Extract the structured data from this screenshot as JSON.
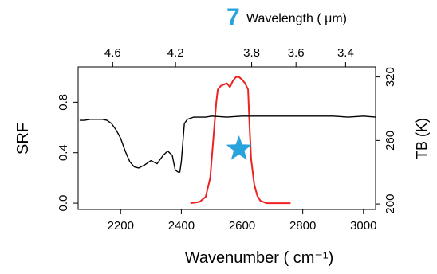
{
  "panel_label": "7",
  "colors": {
    "srf": "#ee2222",
    "tb": "#000000",
    "star": "#29a3dc",
    "panel_label": "#29a3dc"
  },
  "chart_data": {
    "type": "line",
    "xlabel": "Wavenumber ( cm⁻¹)",
    "top_axis_label": "Wavelength ( μm)",
    "ylabel_left": "SRF",
    "ylabel_right": "TB (K)",
    "xlim": [
      2060,
      3040
    ],
    "ylim_left": [
      -0.05,
      1.08
    ],
    "ylim_right": [
      194.8,
      329.5
    ],
    "x_ticks": [
      2200,
      2400,
      2600,
      2800,
      3000
    ],
    "top_ticks": [
      {
        "label": "4.6",
        "value": 4.6
      },
      {
        "label": "4.2",
        "value": 4.2
      },
      {
        "label": "3.8",
        "value": 3.8
      },
      {
        "label": "3.6",
        "value": 3.6
      },
      {
        "label": "3.4",
        "value": 3.4
      }
    ],
    "left_ticks": [
      {
        "label": "0.0",
        "value": 0.0
      },
      {
        "label": "0.4",
        "value": 0.4
      },
      {
        "label": "0.8",
        "value": 0.8
      }
    ],
    "right_ticks": [
      {
        "label": "200",
        "value": 200
      },
      {
        "label": "260",
        "value": 260
      },
      {
        "label": "320",
        "value": 320
      }
    ],
    "series": [
      {
        "axis": "left",
        "color": "#ee2222",
        "x": [
          2430,
          2460,
          2480,
          2495,
          2505,
          2515,
          2520,
          2530,
          2540,
          2550,
          2560,
          2570,
          2580,
          2590,
          2600,
          2610,
          2620,
          2625,
          2630,
          2640,
          2650,
          2660,
          2680,
          2700,
          2730,
          2760
        ],
        "y": [
          0.0,
          0.01,
          0.05,
          0.2,
          0.5,
          0.8,
          0.9,
          0.93,
          0.94,
          0.95,
          0.92,
          0.97,
          1.0,
          1.0,
          0.98,
          0.95,
          0.9,
          0.6,
          0.35,
          0.15,
          0.06,
          0.02,
          0.0,
          0.0,
          0.0,
          0.0
        ]
      },
      {
        "axis": "right",
        "color": "#000000",
        "x": [
          2065,
          2080,
          2100,
          2120,
          2140,
          2155,
          2170,
          2185,
          2200,
          2215,
          2230,
          2245,
          2260,
          2280,
          2300,
          2320,
          2340,
          2355,
          2370,
          2380,
          2390,
          2395,
          2400,
          2410,
          2420,
          2440,
          2460,
          2480,
          2500,
          2550,
          2600,
          2700,
          2800,
          2900,
          2950,
          3000,
          3040
        ],
        "y": [
          279,
          279,
          280,
          280,
          280,
          279,
          276,
          270,
          262,
          250,
          240,
          235,
          234,
          237,
          241,
          238,
          246,
          250,
          246,
          232,
          230,
          230,
          240,
          276,
          280,
          282,
          282,
          282,
          283,
          282,
          283,
          283,
          283,
          283,
          282,
          283,
          282
        ]
      }
    ],
    "annotations": [
      {
        "type": "star",
        "x": 2590,
        "y_left": 0.43
      }
    ]
  }
}
